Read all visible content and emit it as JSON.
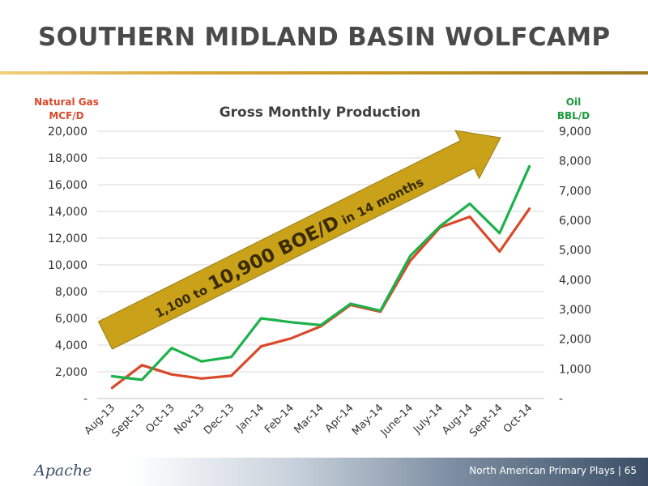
{
  "slide": {
    "title": "SOUTHERN MIDLAND BASIN WOLFCAMP",
    "footer_text": "North American Primary Plays | 65",
    "logo_text": "Apache"
  },
  "chart_data": {
    "type": "line",
    "title": "Gross Monthly Production",
    "left_axis_title": [
      "Natural Gas",
      "MCF/D"
    ],
    "right_axis_title": [
      "Oil",
      "BBL/D"
    ],
    "categories": [
      "Aug-13",
      "Sept-13",
      "Oct-13",
      "Nov-13",
      "Dec-13",
      "Jan-14",
      "Feb-14",
      "Mar-14",
      "Apr-14",
      "May-14",
      "June-14",
      "July-14",
      "Aug-14",
      "Sept-14",
      "Oct-14"
    ],
    "left_ylim": [
      0,
      20000
    ],
    "right_ylim": [
      0,
      9000
    ],
    "left_ticks": [
      "-",
      "2,000",
      "4,000",
      "6,000",
      "8,000",
      "10,000",
      "12,000",
      "14,000",
      "16,000",
      "18,000",
      "20,000"
    ],
    "right_ticks": [
      "-",
      "1,000",
      "2,000",
      "3,000",
      "4,000",
      "5,000",
      "6,000",
      "7,000",
      "8,000",
      "9,000"
    ],
    "grid": true,
    "series": [
      {
        "axis": "left",
        "color": "#d9492a",
        "values": [
          800,
          2500,
          1800,
          1500,
          1700,
          3900,
          4500,
          5400,
          7000,
          6500,
          10300,
          12800,
          13600,
          11000,
          14200
        ]
      },
      {
        "axis": "right",
        "color": "#1db14b",
        "values": [
          750,
          630,
          1700,
          1250,
          1400,
          2700,
          2570,
          2470,
          3190,
          2960,
          4800,
          5800,
          6560,
          5570,
          7820
        ]
      }
    ],
    "annotation": {
      "color": "#c9a21a",
      "text_prefix": "1,100 to ",
      "text_big": "10,900 BOE/D",
      "text_suffix": " in 14 months"
    }
  }
}
